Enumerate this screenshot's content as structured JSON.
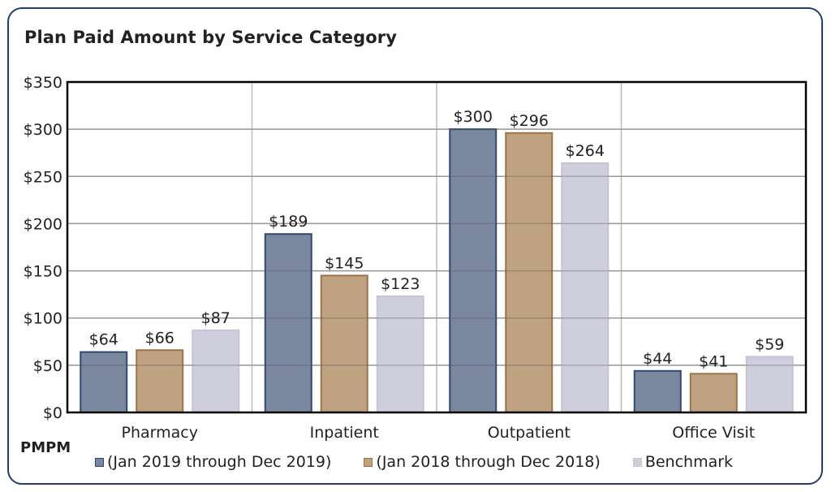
{
  "title": "Plan Paid Amount by Service Category",
  "unit_label": "PMPM",
  "colors": {
    "series_fill": [
      "#7a879e",
      "#bea282",
      "#cfcedd"
    ],
    "series_stroke": [
      "#2f4a6e",
      "#9c7446",
      "#c5c3d6"
    ],
    "grid": "#bbbbbb",
    "card_border": "#1f3f6e"
  },
  "chart_data": {
    "type": "bar",
    "title": "Plan Paid Amount by Service Category",
    "xlabel": "",
    "ylabel": "PMPM",
    "ylim": [
      0,
      350
    ],
    "yticks": [
      0,
      50,
      100,
      150,
      200,
      250,
      300,
      350
    ],
    "ytick_labels": [
      "$0",
      "$50",
      "$100",
      "$150",
      "$200",
      "$250",
      "$300",
      "$350"
    ],
    "grid": true,
    "legend_position": "bottom",
    "categories": [
      "Pharmacy",
      "Inpatient",
      "Outpatient",
      "Office Visit"
    ],
    "series": [
      {
        "name": "(Jan 2019 through Dec 2019)",
        "values": [
          64,
          189,
          300,
          44
        ],
        "labels": [
          "$64",
          "$189",
          "$300",
          "$44"
        ]
      },
      {
        "name": "(Jan 2018 through Dec 2018)",
        "values": [
          66,
          145,
          296,
          41
        ],
        "labels": [
          "$66",
          "$145",
          "$296",
          "$41"
        ]
      },
      {
        "name": "Benchmark",
        "values": [
          87,
          123,
          264,
          59
        ],
        "labels": [
          "$87",
          "$123",
          "$264",
          "$59"
        ]
      }
    ]
  }
}
